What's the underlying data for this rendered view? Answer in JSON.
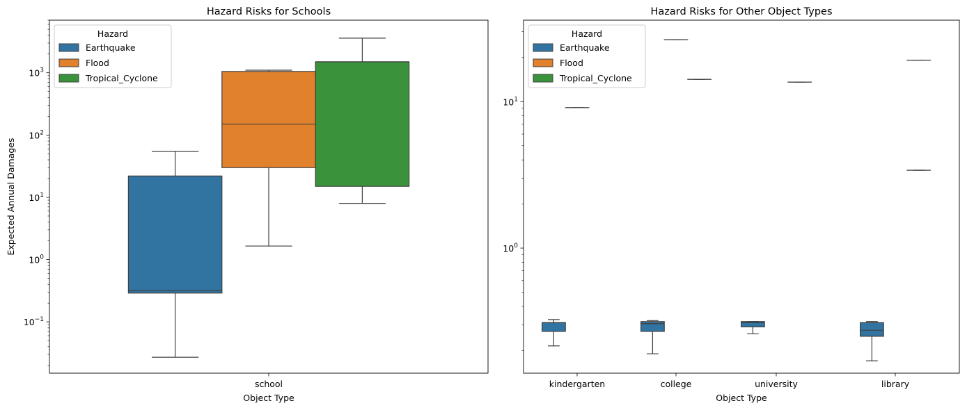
{
  "colors": {
    "Earthquake": "#3274a1",
    "Flood": "#e1812c",
    "Tropical_Cyclone": "#3a923a",
    "stroke": "#3f3f3f"
  },
  "chart_data": [
    {
      "type": "box",
      "title": "Hazard Risks for Schools",
      "xlabel": "Object Type",
      "ylabel": "Expected Annual Damages",
      "yscale": "log",
      "ylim": [
        0.015,
        7000
      ],
      "yticks": [
        {
          "value": 0.1,
          "label": "10",
          "exp": "−1"
        },
        {
          "value": 1,
          "label": "10",
          "exp": "0"
        },
        {
          "value": 10,
          "label": "10",
          "exp": "1"
        },
        {
          "value": 100,
          "label": "10",
          "exp": "2"
        },
        {
          "value": 1000,
          "label": "10",
          "exp": "3"
        }
      ],
      "categories": [
        "school"
      ],
      "legend": {
        "title": "Hazard",
        "position": "upper left",
        "entries": [
          "Earthquake",
          "Flood",
          "Tropical_Cyclone"
        ]
      },
      "series": [
        {
          "name": "Earthquake",
          "boxes": [
            {
              "category": "school",
              "whislo": 0.027,
              "q1": 0.29,
              "med": 0.32,
              "q3": 22,
              "whishi": 55
            }
          ]
        },
        {
          "name": "Flood",
          "boxes": [
            {
              "category": "school",
              "whislo": 1.65,
              "q1": 30,
              "med": 150,
              "q3": 1050,
              "whishi": 1100
            }
          ]
        },
        {
          "name": "Tropical_Cyclone",
          "boxes": [
            {
              "category": "school",
              "whislo": 8,
              "q1": 15,
              "med": 1500,
              "q3": 1500,
              "whishi": 3600
            }
          ]
        }
      ]
    },
    {
      "type": "box",
      "title": "Hazard Risks for Other Object Types",
      "xlabel": "Object Type",
      "ylabel": "",
      "yscale": "log",
      "ylim": [
        0.14,
        36
      ],
      "yticks": [
        {
          "value": 1,
          "label": "10",
          "exp": "0"
        },
        {
          "value": 10,
          "label": "10",
          "exp": "1"
        }
      ],
      "categories": [
        "kindergarten",
        "college",
        "university",
        "library"
      ],
      "legend": {
        "title": "Hazard",
        "position": "upper left",
        "entries": [
          "Earthquake",
          "Flood",
          "Tropical_Cyclone"
        ]
      },
      "series": [
        {
          "name": "Earthquake",
          "boxes": [
            {
              "category": "kindergarten",
              "whislo": 0.215,
              "q1": 0.27,
              "med": 0.31,
              "q3": 0.31,
              "whishi": 0.325
            },
            {
              "category": "college",
              "whislo": 0.19,
              "q1": 0.27,
              "med": 0.305,
              "q3": 0.315,
              "whishi": 0.32
            },
            {
              "category": "university",
              "whislo": 0.26,
              "q1": 0.29,
              "med": 0.31,
              "q3": 0.315,
              "whishi": 0.315
            },
            {
              "category": "library",
              "whislo": 0.17,
              "q1": 0.25,
              "med": 0.275,
              "q3": 0.31,
              "whishi": 0.315
            }
          ]
        },
        {
          "name": "Flood",
          "boxes": [
            {
              "category": "kindergarten",
              "whislo": 9.1,
              "q1": 9.1,
              "med": 9.1,
              "q3": 9.1,
              "whishi": 9.1
            },
            {
              "category": "college",
              "whislo": 26.5,
              "q1": 26.5,
              "med": 26.5,
              "q3": 26.5,
              "whishi": 26.5
            }
          ]
        },
        {
          "name": "Tropical_Cyclone",
          "boxes": [
            {
              "category": "college",
              "whislo": 14.2,
              "q1": 14.2,
              "med": 14.2,
              "q3": 14.2,
              "whishi": 14.2
            },
            {
              "category": "university",
              "whislo": 13.6,
              "q1": 13.6,
              "med": 13.6,
              "q3": 13.6,
              "whishi": 13.6
            },
            {
              "category": "library",
              "whislo": 3.4,
              "q1": 3.4,
              "med": 3.4,
              "q3": 3.4,
              "whishi": 3.4
            },
            {
              "category": "library",
              "whislo": 19.2,
              "q1": 19.2,
              "med": 19.2,
              "q3": 19.2,
              "whishi": 19.2
            }
          ]
        }
      ]
    }
  ]
}
